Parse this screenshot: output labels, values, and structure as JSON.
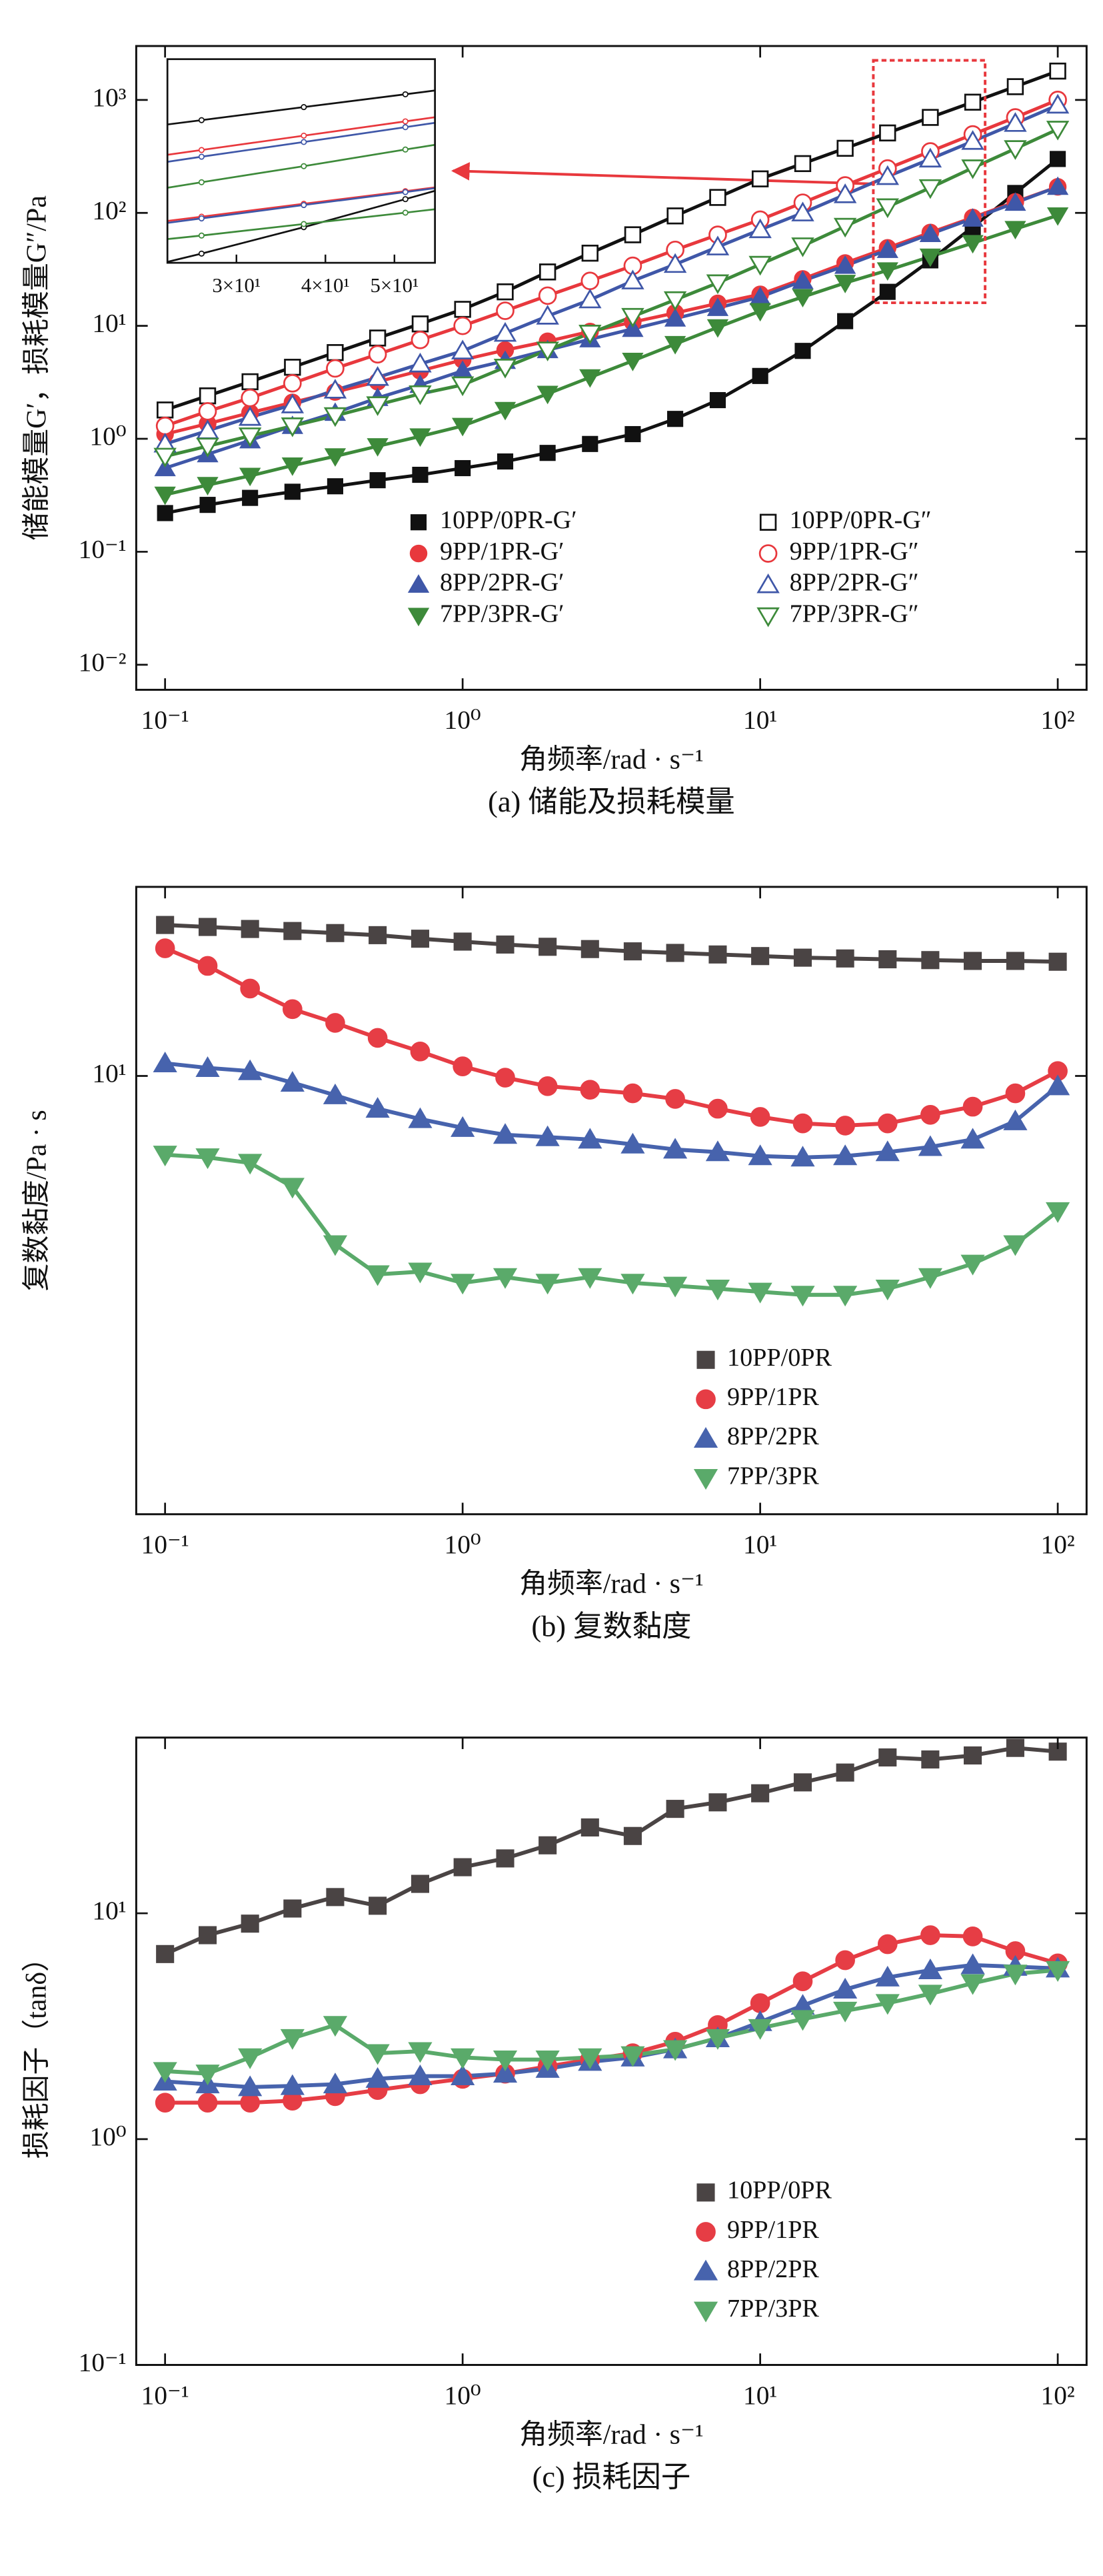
{
  "chart_data": [
    {
      "type": "line",
      "caption": "(a) 储能及损耗模量",
      "x_label": "角频率/rad · s⁻¹",
      "y_label": "储能模量G′，损耗模量G″/Pa",
      "xscale": "log",
      "yscale": "log",
      "xlim": [
        0.08,
        125
      ],
      "ylim": [
        0.006,
        3000
      ],
      "xticks": [
        {
          "value": 0.1,
          "label": "10⁻¹"
        },
        {
          "value": 1,
          "label": "10⁰"
        },
        {
          "value": 10,
          "label": "10¹"
        },
        {
          "value": 100,
          "label": "10²"
        }
      ],
      "yticks": [
        {
          "value": 0.01,
          "label": "10⁻²"
        },
        {
          "value": 0.1,
          "label": "10⁻¹"
        },
        {
          "value": 1,
          "label": "10⁰"
        },
        {
          "value": 10,
          "label": "10¹"
        },
        {
          "value": 100,
          "label": "10²"
        },
        {
          "value": 1000,
          "label": "10³"
        }
      ],
      "legend": "lower right",
      "legend_columns": 2,
      "x": [
        0.1,
        0.139,
        0.193,
        0.268,
        0.373,
        0.518,
        0.72,
        1,
        1.39,
        1.93,
        2.68,
        3.73,
        5.18,
        7.2,
        10,
        13.9,
        19.3,
        26.8,
        37.3,
        51.8,
        72,
        100
      ],
      "series": [
        {
          "name": "10PP/0PR-G′",
          "color": "#111111",
          "marker": "square",
          "filled": true,
          "values": [
            0.22,
            0.26,
            0.3,
            0.34,
            0.38,
            0.43,
            0.48,
            0.55,
            0.63,
            0.75,
            0.9,
            1.1,
            1.5,
            2.2,
            3.6,
            6,
            11,
            20,
            38,
            75,
            150,
            300
          ]
        },
        {
          "name": "9PP/1PR-G′",
          "color": "#e8383d",
          "marker": "circle",
          "filled": true,
          "values": [
            1.1,
            1.36,
            1.7,
            2.1,
            2.6,
            3.2,
            4.0,
            5.0,
            6.1,
            7.3,
            8.9,
            10.8,
            13,
            15.8,
            19,
            26,
            36,
            49,
            67,
            91,
            125,
            170
          ]
        },
        {
          "name": "8PP/2PR-G′",
          "color": "#3f57a8",
          "marker": "triangle-up",
          "filled": true,
          "values": [
            0.55,
            0.73,
            0.97,
            1.3,
            1.7,
            2.3,
            3.0,
            4.0,
            4.9,
            6.1,
            7.6,
            9.4,
            11.6,
            14.4,
            18,
            25,
            34,
            47,
            65,
            89,
            123,
            170
          ]
        },
        {
          "name": "7PP/3PR-G′",
          "color": "#3d8a3a",
          "marker": "triangle-down",
          "filled": true,
          "values": [
            0.32,
            0.39,
            0.47,
            0.58,
            0.7,
            0.86,
            1.05,
            1.3,
            1.8,
            2.5,
            3.5,
            4.9,
            6.9,
            9.7,
            13.5,
            18,
            24,
            31,
            41,
            54,
            72,
            95
          ]
        },
        {
          "name": "10PP/0PR-G″",
          "color": "#111111",
          "marker": "square",
          "filled": false,
          "values": [
            1.8,
            2.4,
            3.2,
            4.3,
            5.8,
            7.8,
            10.4,
            14,
            20,
            30,
            44,
            64,
            94,
            137,
            200,
            273,
            373,
            510,
            700,
            955,
            1310,
            1800
          ]
        },
        {
          "name": "9PP/1PR-G″",
          "color": "#e8383d",
          "marker": "circle",
          "filled": false,
          "values": [
            1.3,
            1.75,
            2.3,
            3.1,
            4.2,
            5.6,
            7.5,
            10,
            13.6,
            18.5,
            25,
            34,
            47,
            64,
            87,
            123,
            175,
            247,
            350,
            495,
            700,
            1000
          ]
        },
        {
          "name": "8PP/2PR-G″",
          "color": "#3f57a8",
          "marker": "triangle-up",
          "filled": false,
          "values": [
            0.9,
            1.18,
            1.55,
            2.0,
            2.7,
            3.5,
            4.6,
            6.0,
            8.6,
            12.2,
            17,
            25,
            35,
            50,
            71,
            100,
            145,
            210,
            300,
            430,
            620,
            900
          ]
        },
        {
          "name": "7PP/3PR-G″",
          "color": "#3d8a3a",
          "marker": "triangle-down",
          "filled": false,
          "values": [
            0.7,
            0.86,
            1.06,
            1.3,
            1.6,
            2.0,
            2.5,
            3.0,
            4.3,
            6.1,
            8.6,
            12.1,
            17,
            24,
            35,
            51,
            76,
            113,
            167,
            250,
            370,
            550
          ]
        }
      ],
      "inset": {
        "xlim": [
          24,
          57
        ],
        "ylim": [
          16,
          2240
        ],
        "xticks": [
          {
            "value": 30,
            "label": "3×10¹"
          },
          {
            "value": 40,
            "label": "4×10¹"
          },
          {
            "value": 50,
            "label": "5×10¹"
          }
        ]
      }
    },
    {
      "type": "line",
      "caption": "(b) 复数黏度",
      "x_label": "角频率/rad · s⁻¹",
      "y_label": "复数黏度/Pa · s",
      "xscale": "log",
      "yscale": "log",
      "xlim": [
        0.08,
        125
      ],
      "ylim": [
        0.7,
        31.5
      ],
      "xticks": [
        {
          "value": 0.1,
          "label": "10⁻¹"
        },
        {
          "value": 1,
          "label": "10⁰"
        },
        {
          "value": 10,
          "label": "10¹"
        },
        {
          "value": 100,
          "label": "10²"
        }
      ],
      "yticks": [
        {
          "value": 10,
          "label": "10¹"
        }
      ],
      "legend": "lower right",
      "legend_columns": 1,
      "x": [
        0.1,
        0.139,
        0.193,
        0.268,
        0.373,
        0.518,
        0.72,
        1,
        1.39,
        1.93,
        2.68,
        3.73,
        5.18,
        7.2,
        10,
        13.9,
        19.3,
        26.8,
        37.3,
        51.8,
        72,
        100
      ],
      "series": [
        {
          "name": "10PP/0PR",
          "color": "#4a4444",
          "marker": "square",
          "filled": true,
          "values": [
            25,
            24.7,
            24.4,
            24.1,
            23.8,
            23.5,
            23,
            22.6,
            22.2,
            21.9,
            21.6,
            21.3,
            21.1,
            20.9,
            20.7,
            20.5,
            20.4,
            20.3,
            20.2,
            20.1,
            20.1,
            20.0
          ]
        },
        {
          "name": "9PP/1PR",
          "color": "#e63d45",
          "marker": "circle",
          "filled": true,
          "values": [
            21.7,
            19.5,
            17,
            15,
            13.8,
            12.6,
            11.6,
            10.6,
            9.9,
            9.4,
            9.2,
            9.0,
            8.7,
            8.2,
            7.8,
            7.5,
            7.4,
            7.5,
            7.9,
            8.3,
            9.0,
            10.3
          ]
        },
        {
          "name": "8PP/2PR",
          "color": "#4763ad",
          "marker": "triangle-up",
          "filled": true,
          "values": [
            10.8,
            10.5,
            10.3,
            9.6,
            8.9,
            8.2,
            7.7,
            7.3,
            7.0,
            6.9,
            6.8,
            6.6,
            6.4,
            6.3,
            6.15,
            6.1,
            6.15,
            6.3,
            6.5,
            6.8,
            7.6,
            9.4
          ]
        },
        {
          "name": "7PP/3PR",
          "color": "#5aaa6a",
          "marker": "triangle-down",
          "filled": true,
          "values": [
            6.2,
            6.1,
            5.9,
            5.1,
            3.6,
            3.0,
            3.05,
            2.85,
            2.95,
            2.85,
            2.95,
            2.85,
            2.8,
            2.75,
            2.7,
            2.65,
            2.65,
            2.75,
            2.95,
            3.2,
            3.6,
            4.4
          ]
        }
      ]
    },
    {
      "type": "line",
      "caption": "(c) 损耗因子",
      "x_label": "角频率/rad · s⁻¹",
      "y_label": "损耗因子（tanδ）",
      "xscale": "log",
      "yscale": "log",
      "xlim": [
        0.08,
        125
      ],
      "ylim": [
        0.1,
        60
      ],
      "xticks": [
        {
          "value": 0.1,
          "label": "10⁻¹"
        },
        {
          "value": 1,
          "label": "10⁰"
        },
        {
          "value": 10,
          "label": "10¹"
        },
        {
          "value": 100,
          "label": "10²"
        }
      ],
      "yticks": [
        {
          "value": 0.1,
          "label": "10⁻¹"
        },
        {
          "value": 1,
          "label": "10⁰"
        },
        {
          "value": 10,
          "label": "10¹"
        }
      ],
      "legend": "lower right",
      "legend_columns": 1,
      "x": [
        0.1,
        0.139,
        0.193,
        0.268,
        0.373,
        0.518,
        0.72,
        1,
        1.39,
        1.93,
        2.68,
        3.73,
        5.18,
        7.2,
        10,
        13.9,
        19.3,
        26.8,
        37.3,
        51.8,
        72,
        100
      ],
      "series": [
        {
          "name": "10PP/0PR",
          "color": "#4a4444",
          "marker": "square",
          "filled": true,
          "values": [
            6.6,
            8.0,
            9.0,
            10.5,
            11.8,
            10.8,
            13.5,
            16,
            17.5,
            20,
            24,
            22,
            29,
            31,
            34,
            38,
            42,
            49,
            48,
            50,
            54,
            52
          ]
        },
        {
          "name": "9PP/1PR",
          "color": "#e63d45",
          "marker": "circle",
          "filled": true,
          "values": [
            1.45,
            1.45,
            1.45,
            1.48,
            1.55,
            1.65,
            1.75,
            1.85,
            1.95,
            2.1,
            2.25,
            2.4,
            2.7,
            3.2,
            4.0,
            5.0,
            6.2,
            7.3,
            8.0,
            7.9,
            6.8,
            6.0
          ]
        },
        {
          "name": "8PP/2PR",
          "color": "#4763ad",
          "marker": "triangle-up",
          "filled": true,
          "values": [
            1.8,
            1.75,
            1.7,
            1.72,
            1.75,
            1.85,
            1.9,
            1.9,
            1.95,
            2.05,
            2.2,
            2.3,
            2.5,
            2.8,
            3.3,
            3.9,
            4.6,
            5.2,
            5.6,
            5.9,
            5.8,
            5.7
          ]
        },
        {
          "name": "7PP/3PR",
          "color": "#5aaa6a",
          "marker": "triangle-down",
          "filled": true,
          "values": [
            2.0,
            1.95,
            2.3,
            2.8,
            3.2,
            2.4,
            2.45,
            2.3,
            2.25,
            2.25,
            2.3,
            2.35,
            2.5,
            2.8,
            3.1,
            3.4,
            3.7,
            4.0,
            4.4,
            4.9,
            5.4,
            5.6
          ]
        }
      ]
    }
  ]
}
